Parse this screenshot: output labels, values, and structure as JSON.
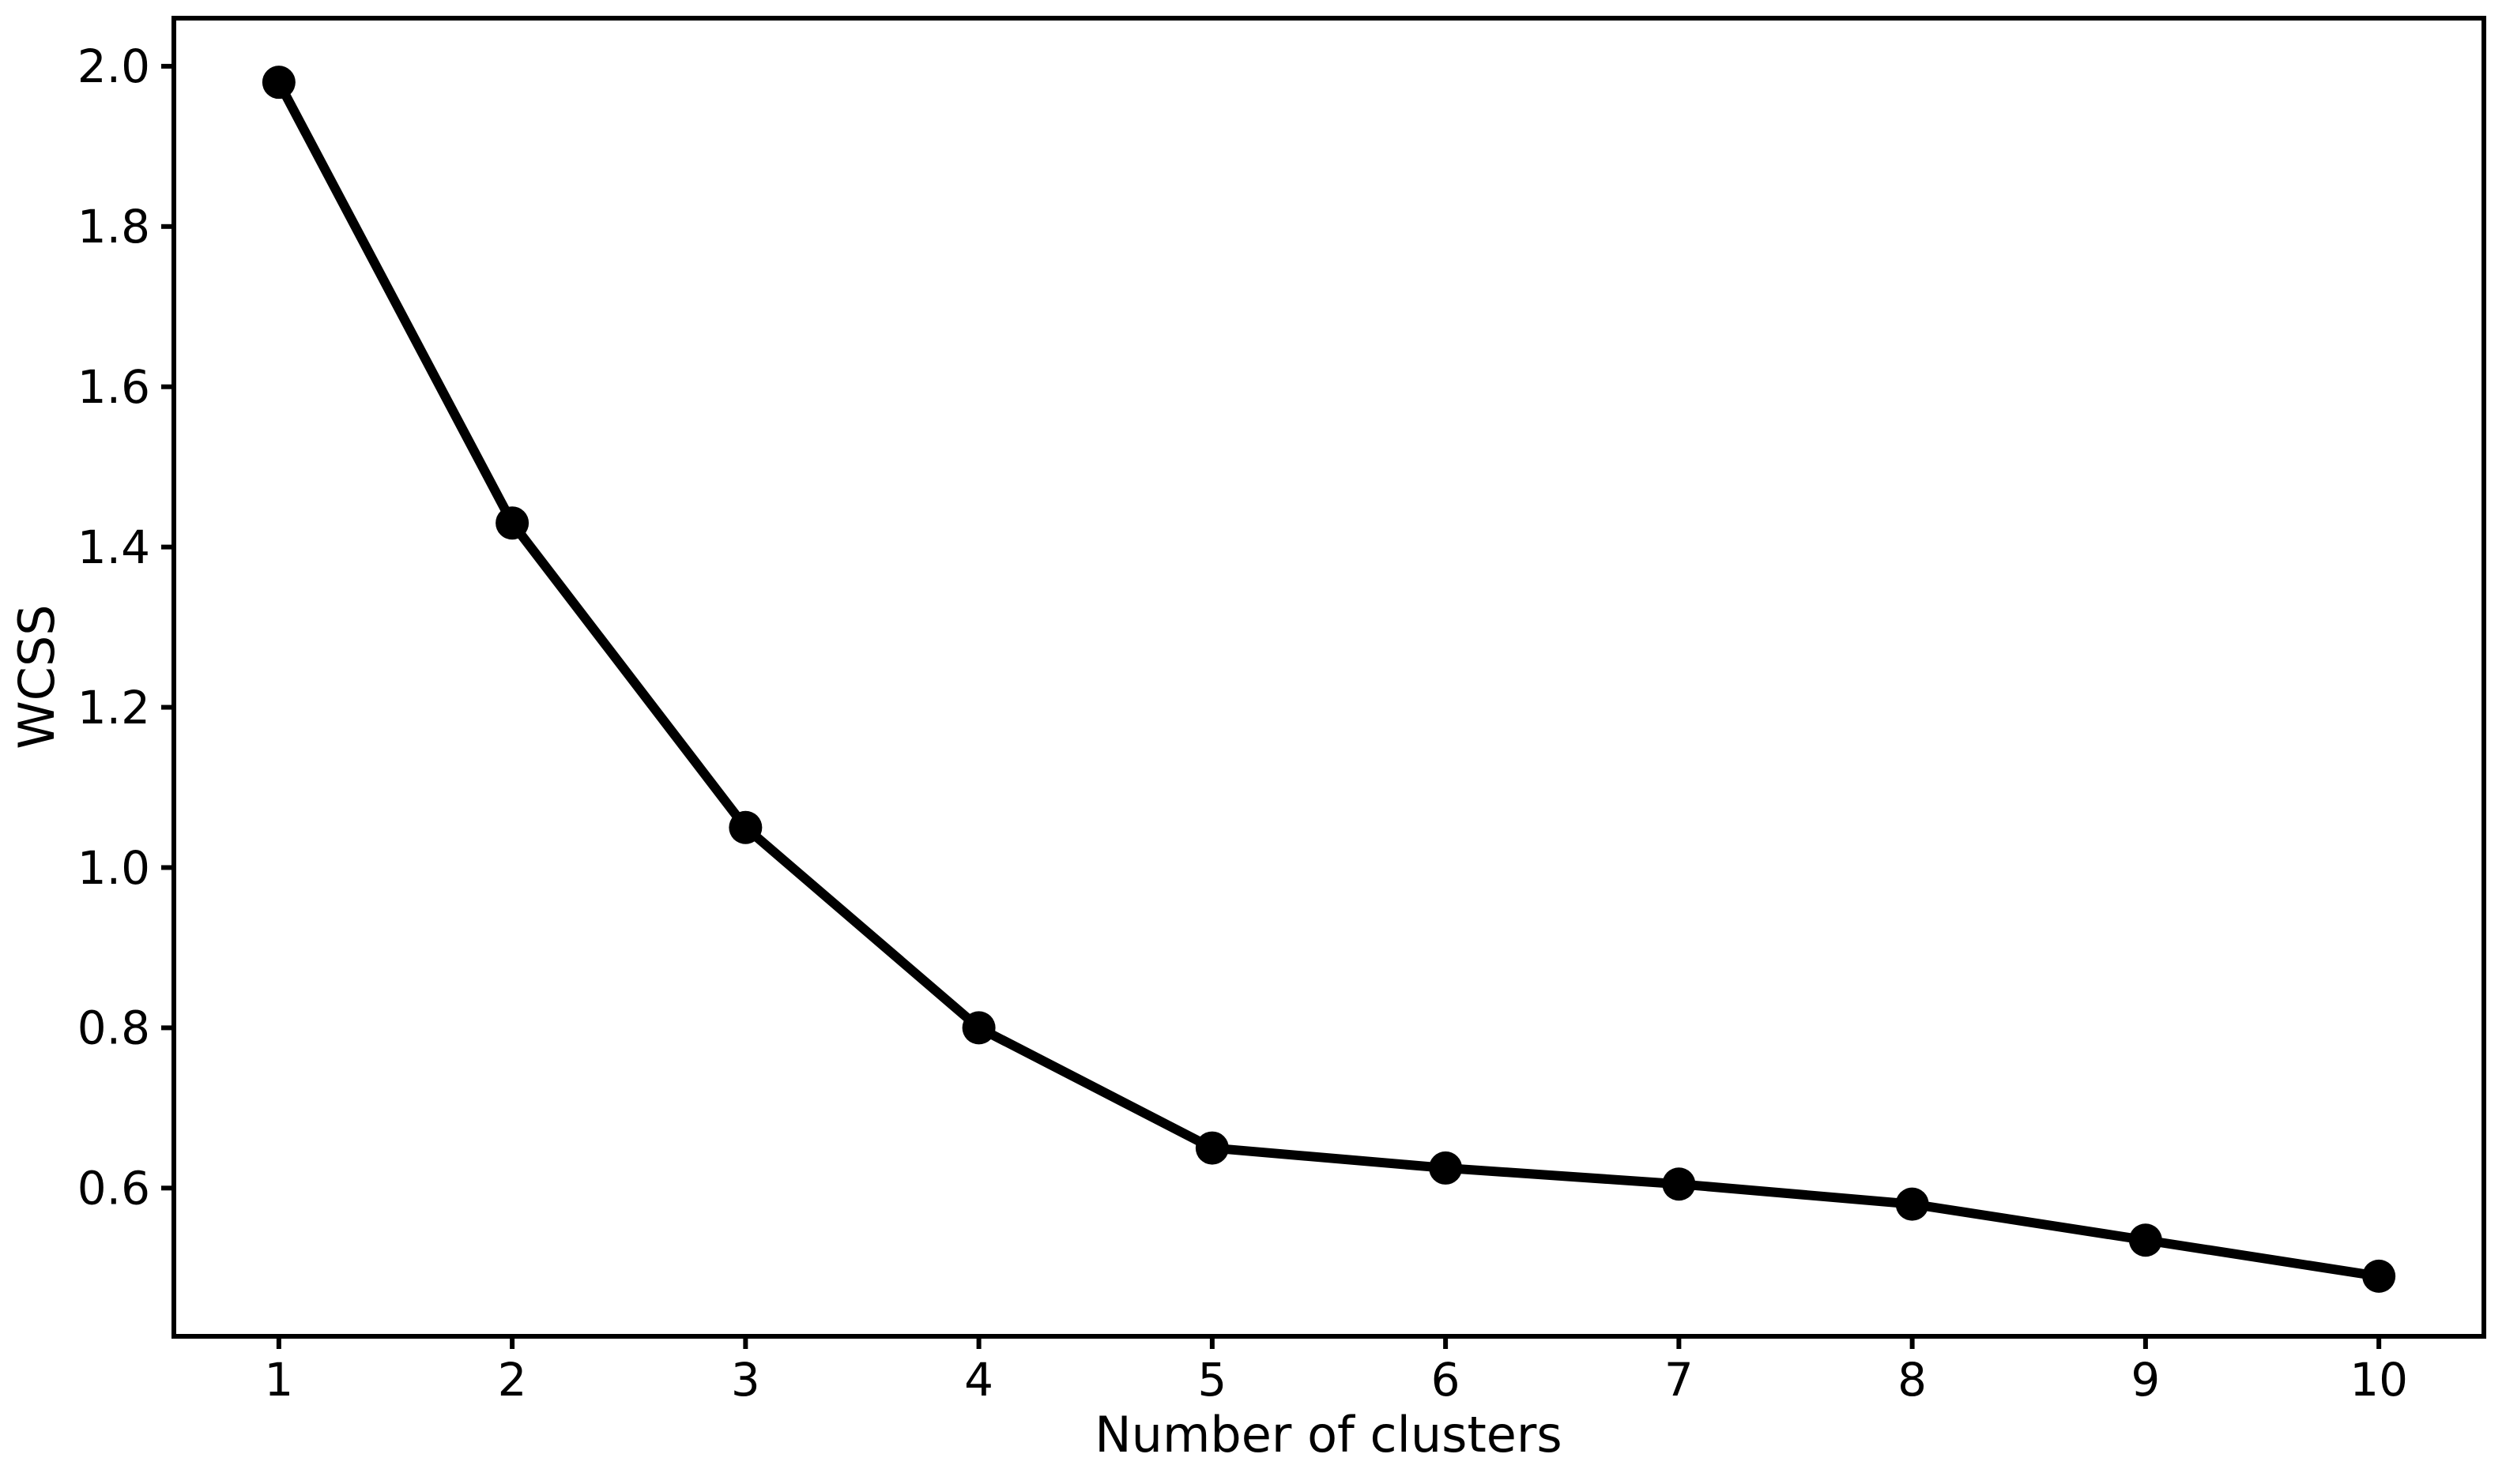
{
  "figure": {
    "background": "#ffffff",
    "foreground": "#000000"
  },
  "chart_data": {
    "type": "line",
    "title": "",
    "xlabel": "Number of clusters",
    "ylabel": "WCSS",
    "series": [
      {
        "name": "WCSS",
        "x": [
          1,
          2,
          3,
          4,
          5,
          6,
          7,
          8,
          9,
          10
        ],
        "y": [
          1.98,
          1.43,
          1.05,
          0.8,
          0.65,
          0.625,
          0.605,
          0.58,
          0.535,
          0.49
        ],
        "line_color": "#000000",
        "marker": "circle",
        "marker_color": "#000000"
      }
    ],
    "x_ticks": [
      1,
      2,
      3,
      4,
      5,
      6,
      7,
      8,
      9,
      10
    ],
    "x_tick_labels": [
      "1",
      "2",
      "3",
      "4",
      "5",
      "6",
      "7",
      "8",
      "9",
      "10"
    ],
    "y_ticks": [
      0.6,
      0.8,
      1.0,
      1.2,
      1.4,
      1.6,
      1.8,
      2.0
    ],
    "y_tick_labels": [
      "0.6",
      "0.8",
      "1.0",
      "1.2",
      "1.4",
      "1.6",
      "1.8",
      "2.0"
    ],
    "xlim": [
      0.55,
      10.45
    ],
    "ylim": [
      0.415,
      2.06
    ],
    "grid": false,
    "legend": "none",
    "plot_background": "#ffffff",
    "spine_color": "#000000"
  }
}
